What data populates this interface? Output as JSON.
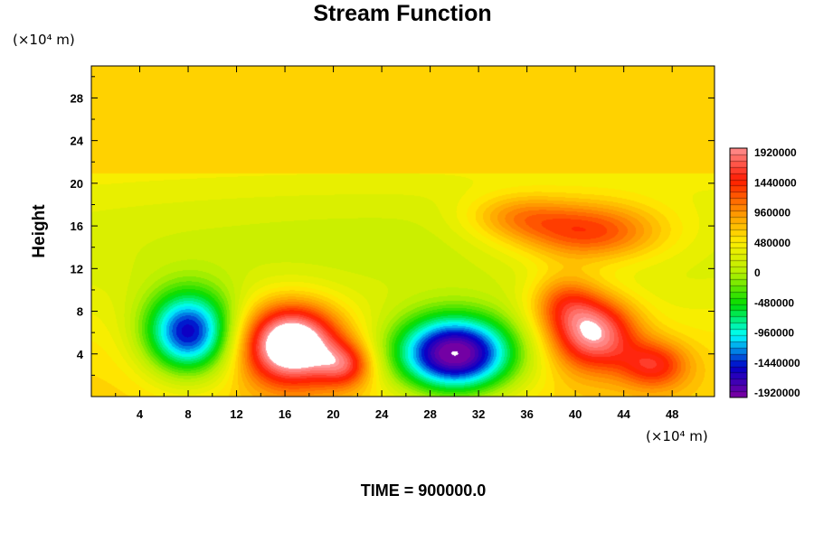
{
  "chart_data": {
    "type": "heatmap",
    "title": "Stream Function",
    "ylabel": "Height",
    "x_unit_label": "(×10⁴ m)",
    "y_unit_label": "(×10⁴ m)",
    "footer": "TIME = 900000.0",
    "xlim": [
      0,
      51.5
    ],
    "ylim": [
      0,
      31
    ],
    "x_ticks": [
      4,
      8,
      12,
      16,
      20,
      24,
      28,
      32,
      36,
      40,
      44,
      48
    ],
    "y_ticks": [
      4,
      8,
      12,
      16,
      20,
      24,
      28
    ],
    "background_value": 640000,
    "features": [
      {
        "name": "mid-level field",
        "x": 25,
        "y": 14,
        "sx": 40,
        "sy": 6,
        "amp": -500000
      },
      {
        "name": "minimum 1",
        "x": 8,
        "y": 6,
        "sx": 2.6,
        "sy": 2.8,
        "amp": -1950000
      },
      {
        "name": "maximum 1",
        "x": 16.5,
        "y": 5,
        "sx": 2.8,
        "sy": 2.6,
        "amp": 2100000
      },
      {
        "name": "maximum 1 tail",
        "x": 21,
        "y": 3,
        "sx": 1.6,
        "sy": 1.5,
        "amp": 900000
      },
      {
        "name": "minimum 2",
        "x": 30,
        "y": 4,
        "sx": 3.6,
        "sy": 2.6,
        "amp": -2500000
      },
      {
        "name": "maximum 2",
        "x": 41.5,
        "y": 6,
        "sx": 2.5,
        "sy": 2.4,
        "amp": 1500000
      },
      {
        "name": "maximum 2 tail",
        "x": 46.5,
        "y": 3,
        "sx": 2,
        "sy": 1.6,
        "amp": 900000
      },
      {
        "name": "maximum 2 arm",
        "x": 39,
        "y": 9,
        "sx": 2,
        "sy": 2,
        "amp": 700000
      },
      {
        "name": "upper maximum",
        "x": 41,
        "y": 15.5,
        "sx": 4.5,
        "sy": 2,
        "amp": 1100000
      },
      {
        "name": "upper plume",
        "x": 35,
        "y": 17,
        "sx": 3,
        "sy": 1.5,
        "amp": 500000
      }
    ],
    "colorbar": {
      "min": -1920000,
      "max": 1920000,
      "tick_labels": [
        "1920000",
        "1440000",
        "960000",
        "480000",
        "0",
        "-480000",
        "-960000",
        "-1440000",
        "-1920000"
      ],
      "colors": [
        "#8000a0",
        "#0000c8",
        "#00ffff",
        "#00dc00",
        "#b4f000",
        "#ffee00",
        "#ff9000",
        "#ff1a00",
        "#ff9090"
      ]
    }
  }
}
